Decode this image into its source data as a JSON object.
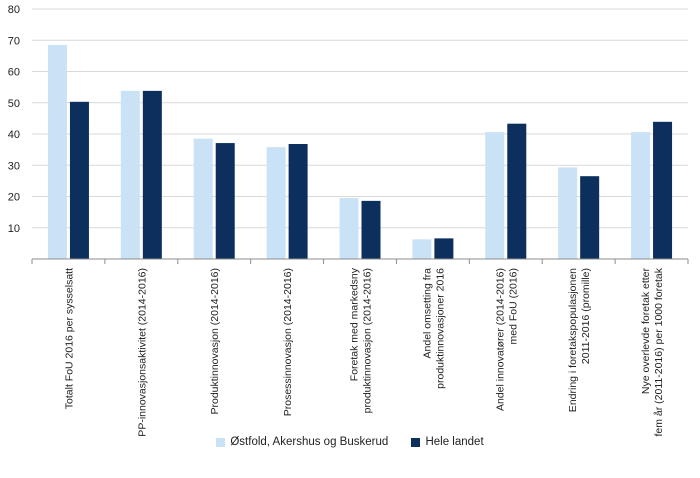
{
  "chart_data": {
    "type": "bar",
    "title": "",
    "xlabel": "",
    "ylabel": "",
    "ylim": [
      0,
      80
    ],
    "yticks": [
      10,
      20,
      30,
      40,
      50,
      60,
      70,
      80
    ],
    "grid": true,
    "legend_position": "bottom",
    "categories": [
      [
        "Totalt FoU 2016 per sysselsatt"
      ],
      [
        "PP-innovasjonsaktivitet (2014-2016)"
      ],
      [
        "Produktinnovasjon (2014-2016)"
      ],
      [
        "Prosessinnovasjon (2014-2016)"
      ],
      [
        "Foretak med markedsny",
        "produktinnovasjon (2014-2016)"
      ],
      [
        "Andel omsetting fra",
        "produktinnovasjoner 2016"
      ],
      [
        "Andel innovatører (2014-2016)",
        "med FoU (2016)"
      ],
      [
        "Endring i foretakspopulasjonen",
        "2011-2016 (promille)"
      ],
      [
        "Nye overlevde foretak etter",
        "fem år (2011-2016) per 1000 foretak"
      ]
    ],
    "series": [
      {
        "name": "Østfold, Akershus og Buskerud",
        "color": "#c9e2f5",
        "values": [
          68.5,
          53.8,
          38.5,
          35.8,
          19.5,
          6.3,
          40.6,
          29.3,
          40.6
        ]
      },
      {
        "name": "Hele landet",
        "color": "#0c2f5e",
        "values": [
          50.3,
          53.8,
          37.1,
          36.8,
          18.6,
          6.6,
          43.3,
          26.5,
          43.9
        ]
      }
    ]
  }
}
